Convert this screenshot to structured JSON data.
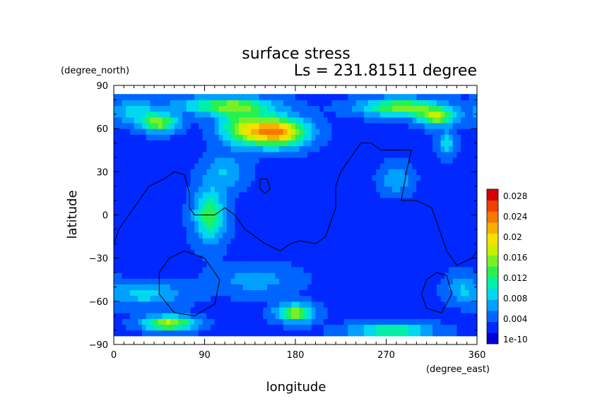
{
  "chart_data": {
    "type": "heatmap",
    "title": "surface stress",
    "subtitle": "Ls = 231.81511 degree",
    "xlabel": "longitude",
    "ylabel": "latitude",
    "x_units": "(degree_east)",
    "y_units": "(degree_north)",
    "xlim": [
      0,
      360
    ],
    "ylim": [
      -90,
      90
    ],
    "x_ticks": [
      "0",
      "90",
      "180",
      "270",
      "360"
    ],
    "y_ticks": [
      "90",
      "60",
      "30",
      "0",
      "−30",
      "−60",
      "−90"
    ],
    "colorbar": {
      "labels": [
        "1e-10",
        "0.004",
        "0.008",
        "0.012",
        "0.016",
        "0.02",
        "0.024",
        "0.028"
      ],
      "colors": [
        "#0000d8",
        "#0028ff",
        "#0064ff",
        "#00a0ff",
        "#00d8f0",
        "#00f0a8",
        "#28f050",
        "#78f028",
        "#c8f000",
        "#f8e000",
        "#f8b000",
        "#f87800",
        "#f04000",
        "#d80000"
      ]
    },
    "field": {
      "background": 0.004,
      "blobs": [
        {
          "lon": 160,
          "lat": 58,
          "rlon": 30,
          "rlat": 10,
          "amp": 0.022
        },
        {
          "lon": 125,
          "lat": 62,
          "rlon": 22,
          "rlat": 12,
          "amp": 0.01
        },
        {
          "lon": 112,
          "lat": 76,
          "rlon": 45,
          "rlat": 6,
          "amp": 0.012
        },
        {
          "lon": 45,
          "lat": 64,
          "rlon": 18,
          "rlat": 6,
          "amp": 0.013
        },
        {
          "lon": 20,
          "lat": 72,
          "rlon": 25,
          "rlat": 8,
          "amp": 0.006
        },
        {
          "lon": 285,
          "lat": 75,
          "rlon": 40,
          "rlat": 6,
          "amp": 0.013
        },
        {
          "lon": 320,
          "lat": 68,
          "rlon": 18,
          "rlat": 6,
          "amp": 0.013
        },
        {
          "lon": 330,
          "lat": 50,
          "rlon": 8,
          "rlat": 8,
          "amp": 0.007
        },
        {
          "lon": 280,
          "lat": 25,
          "rlon": 15,
          "rlat": 10,
          "amp": 0.005
        },
        {
          "lon": 95,
          "lat": 0,
          "rlon": 15,
          "rlat": 18,
          "amp": 0.011
        },
        {
          "lon": 110,
          "lat": 30,
          "rlon": 20,
          "rlat": 12,
          "amp": 0.005
        },
        {
          "lon": 30,
          "lat": -55,
          "rlon": 40,
          "rlat": 8,
          "amp": 0.006
        },
        {
          "lon": 55,
          "lat": -75,
          "rlon": 25,
          "rlat": 5,
          "amp": 0.015
        },
        {
          "lon": 180,
          "lat": -68,
          "rlon": 18,
          "rlat": 6,
          "amp": 0.014
        },
        {
          "lon": 275,
          "lat": -80,
          "rlon": 40,
          "rlat": 5,
          "amp": 0.01
        },
        {
          "lon": 140,
          "lat": -45,
          "rlon": 40,
          "rlat": 10,
          "amp": 0.004
        },
        {
          "lon": 345,
          "lat": -50,
          "rlon": 15,
          "rlat": 10,
          "amp": 0.004
        }
      ]
    },
    "contours": [
      [
        [
          0,
          -20
        ],
        [
          5,
          -10
        ],
        [
          15,
          0
        ],
        [
          25,
          10
        ],
        [
          35,
          20
        ],
        [
          50,
          25
        ],
        [
          60,
          30
        ],
        [
          70,
          28
        ],
        [
          75,
          15
        ],
        [
          75,
          5
        ],
        [
          80,
          0
        ],
        [
          90,
          0
        ],
        [
          100,
          0
        ],
        [
          110,
          5
        ],
        [
          120,
          0
        ],
        [
          130,
          -10
        ],
        [
          140,
          -15
        ],
        [
          150,
          -20
        ],
        [
          165,
          -25
        ],
        [
          175,
          -20
        ],
        [
          185,
          -18
        ],
        [
          200,
          -20
        ],
        [
          210,
          -15
        ],
        [
          215,
          -5
        ],
        [
          220,
          5
        ],
        [
          220,
          20
        ],
        [
          225,
          30
        ],
        [
          235,
          40
        ],
        [
          245,
          50
        ],
        [
          255,
          50
        ],
        [
          265,
          45
        ],
        [
          280,
          45
        ],
        [
          295,
          45
        ],
        [
          290,
          30
        ],
        [
          285,
          10
        ],
        [
          300,
          10
        ],
        [
          315,
          5
        ],
        [
          320,
          -5
        ],
        [
          325,
          -15
        ],
        [
          330,
          -25
        ],
        [
          340,
          -35
        ],
        [
          355,
          -30
        ],
        [
          360,
          -25
        ]
      ],
      [
        [
          70,
          -25
        ],
        [
          90,
          -30
        ],
        [
          105,
          -45
        ],
        [
          100,
          -62
        ],
        [
          80,
          -70
        ],
        [
          60,
          -68
        ],
        [
          45,
          -55
        ],
        [
          45,
          -40
        ],
        [
          55,
          -30
        ],
        [
          70,
          -25
        ]
      ],
      [
        [
          145,
          25
        ],
        [
          152,
          25
        ],
        [
          155,
          18
        ],
        [
          150,
          15
        ],
        [
          145,
          18
        ],
        [
          145,
          25
        ]
      ],
      [
        [
          320,
          -40
        ],
        [
          330,
          -42
        ],
        [
          335,
          -55
        ],
        [
          325,
          -68
        ],
        [
          310,
          -65
        ],
        [
          305,
          -55
        ],
        [
          310,
          -45
        ],
        [
          320,
          -40
        ]
      ]
    ]
  }
}
